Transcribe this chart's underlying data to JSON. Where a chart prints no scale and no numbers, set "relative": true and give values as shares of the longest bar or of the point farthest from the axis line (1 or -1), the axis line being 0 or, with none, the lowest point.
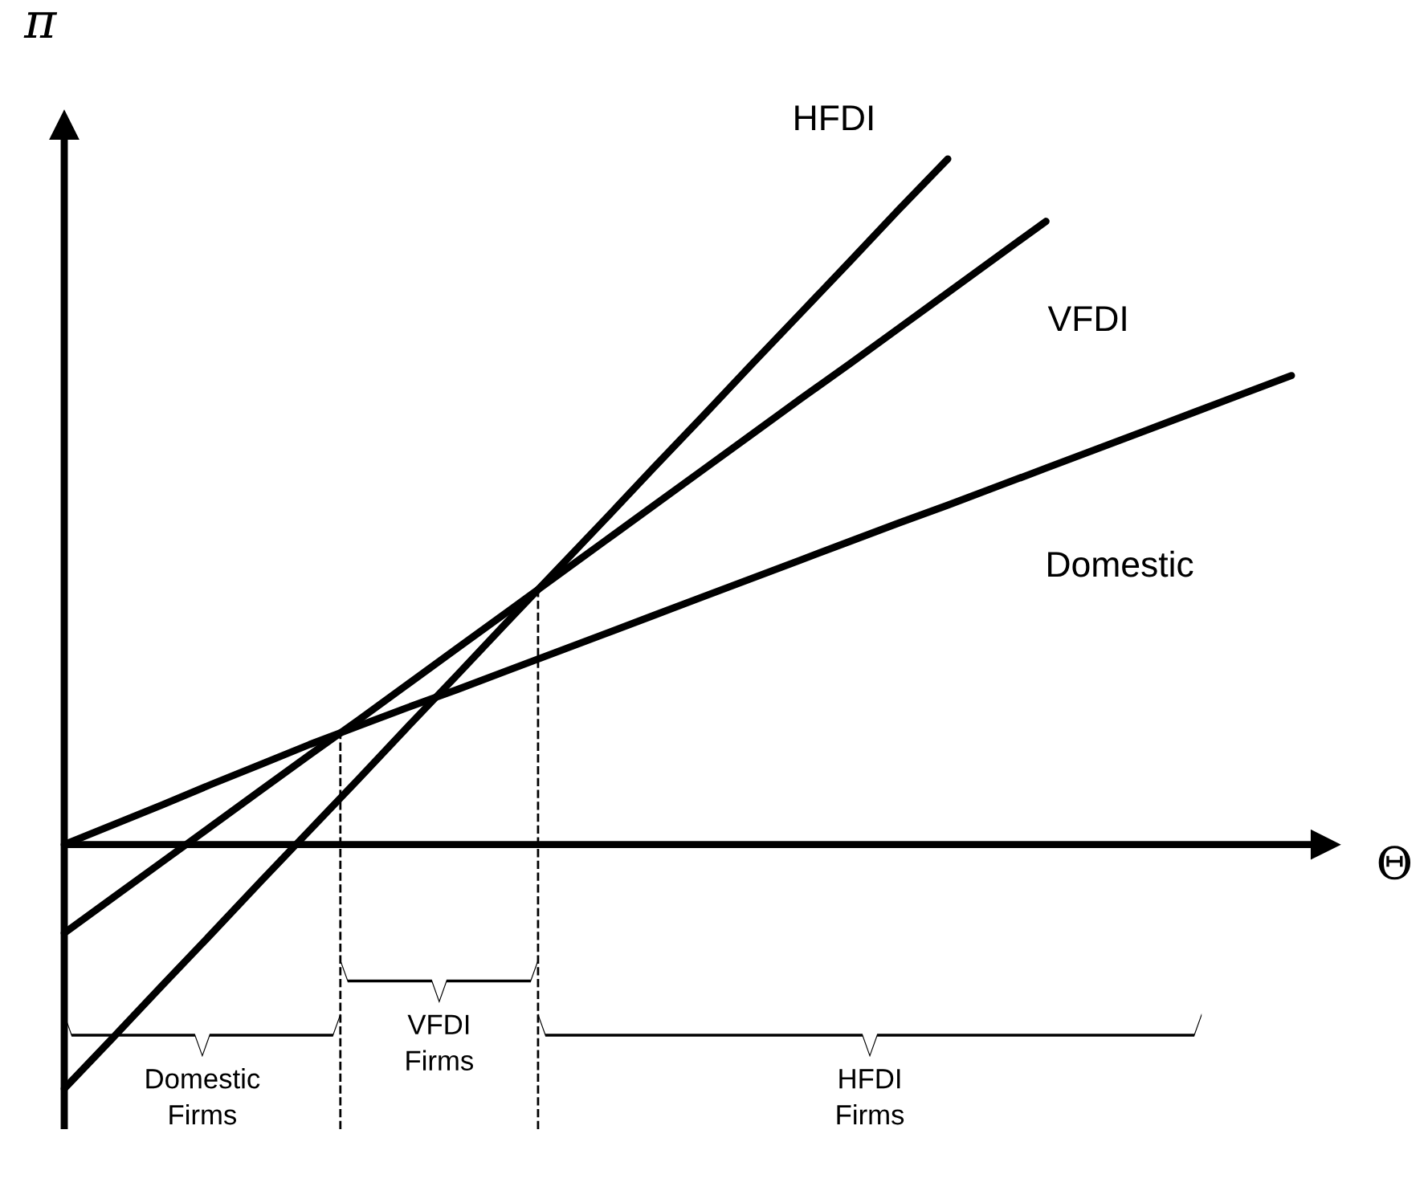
{
  "chart_data": {
    "type": "line",
    "relative": true,
    "line_style": "solid",
    "xlabel": "Θ",
    "ylabel": "π",
    "categories": [
      null,
      null,
      null,
      null,
      null,
      null,
      null,
      null,
      null,
      null,
      null,
      null,
      null,
      null,
      null,
      null,
      null,
      null,
      null,
      null,
      null,
      null,
      null,
      null,
      null,
      null
    ],
    "series": [
      {
        "name": "HFDI",
        "color": "#000000",
        "values": [
          -0.356,
          -0.281,
          -0.205,
          -0.13,
          -0.054,
          0.021,
          0.096,
          0.172,
          0.247,
          0.323,
          0.398,
          0.473,
          0.549,
          0.624,
          0.7,
          0.775,
          0.85,
          0.926,
          1.0,
          null,
          null,
          null,
          null,
          null,
          null,
          null
        ]
      },
      {
        "name": "VFDI",
        "color": "#000000",
        "values": [
          -0.129,
          -0.077,
          -0.025,
          0.027,
          0.079,
          0.131,
          0.182,
          0.234,
          0.286,
          0.338,
          0.39,
          0.442,
          0.494,
          0.546,
          0.598,
          0.65,
          0.701,
          0.753,
          0.805,
          0.857,
          0.909,
          null,
          null,
          null,
          null,
          null
        ]
      },
      {
        "name": "Domestic",
        "color": "#000000",
        "values": [
          0,
          0.029,
          0.058,
          0.088,
          0.117,
          0.146,
          0.173,
          0.2,
          0.226,
          0.253,
          0.28,
          0.307,
          0.334,
          0.361,
          0.388,
          0.415,
          0.442,
          0.469,
          0.495,
          0.522,
          0.549,
          0.576,
          0.603,
          0.63,
          0.657,
          0.684
        ]
      }
    ],
    "annotations": [
      "Domestic\nFirms",
      "VFDI\nFirms",
      "HFDI\nFirms"
    ]
  }
}
